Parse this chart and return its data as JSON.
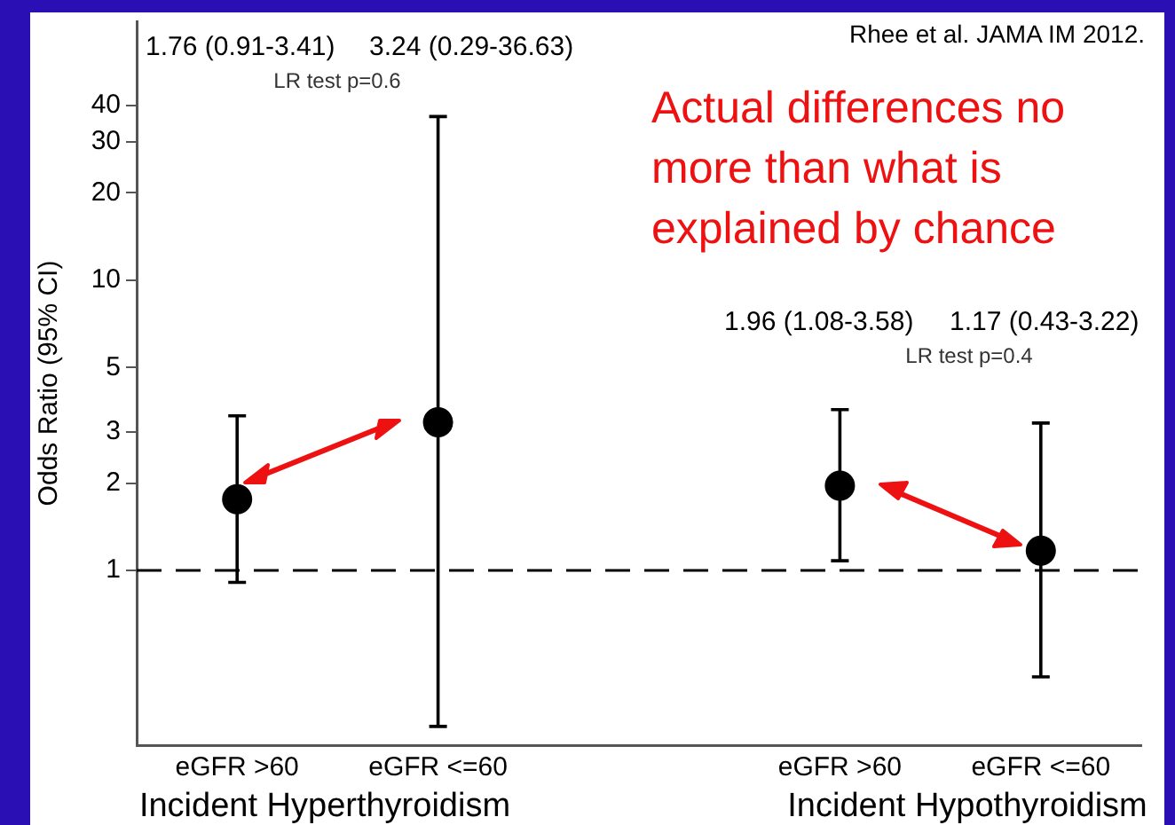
{
  "chart_data": {
    "type": "scatter",
    "ylabel": "Odds Ratio (95% CI)",
    "log": "y",
    "grid": false,
    "legend": false,
    "marker": "circle",
    "categories": [
      "eGFR >60",
      "eGFR <=60",
      null,
      "eGFR >60",
      "eGFR <=60"
    ],
    "ylim": [
      0.25,
      78
    ],
    "yticks": [
      1,
      2,
      3,
      5,
      10,
      20,
      30,
      40
    ],
    "series": [
      {
        "color": "#000000",
        "values": [
          1.76,
          3.24,
          null,
          1.96,
          1.17
        ],
        "errors": [
          [
            0.91,
            3.41
          ],
          [
            0.29,
            36.63
          ],
          null,
          [
            1.08,
            3.58
          ],
          [
            0.43,
            3.22
          ]
        ]
      }
    ],
    "ref_lines": [
      {
        "axis": "y",
        "value": 1,
        "color": "#000000",
        "line_style": "dashed"
      }
    ],
    "annotations": [
      "Rhee et al. JAMA IM 2012.",
      "Actual differences no more than what is explained by chance",
      "Incident Hyperthyroidism",
      "Incident Hypothyroidism",
      "LR test p=0.6",
      "LR test p=0.4",
      "1.76 (0.91-3.41)",
      "3.24 (0.29-36.63)",
      "1.96 (1.08-3.58)",
      "1.17 (0.43-3.22)"
    ]
  }
}
